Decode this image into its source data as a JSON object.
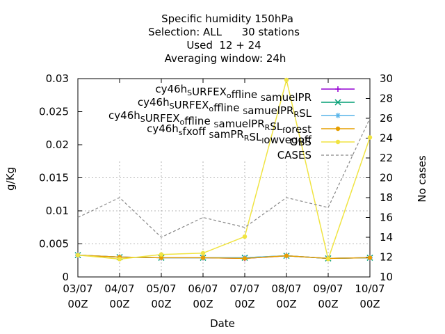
{
  "chart_data": {
    "type": "line",
    "title_lines": [
      "Specific humidity 150hPa",
      "Selection: ALL      30 stations",
      "Used  12 + 24",
      "Averaging window: 24h"
    ],
    "xlabel": "Date",
    "ylabel": "g/Kg",
    "y2label": "No cases",
    "x": [
      "03/07",
      "04/07",
      "05/07",
      "06/07",
      "07/07",
      "08/07",
      "09/07",
      "10/07"
    ],
    "x_sublabel": "00Z",
    "ylim": [
      0,
      0.03
    ],
    "y_ticks": [
      "0",
      "0.005",
      "0.01",
      "0.015",
      "0.02",
      "0.025",
      "0.03"
    ],
    "y2lim": [
      10,
      30
    ],
    "y2_ticks": [
      "10",
      "12",
      "14",
      "16",
      "18",
      "20",
      "22",
      "24",
      "26",
      "28",
      "30"
    ],
    "grid": true,
    "legend_position": "top-right",
    "series": [
      {
        "name": "cy46h_SURFEX_offline_SamuelPR",
        "legend_parts": [
          [
            "cy46h",
            "n"
          ],
          [
            "S",
            "s"
          ],
          [
            "URFEX",
            "n"
          ],
          [
            "o",
            "s"
          ],
          [
            "ffline ",
            "n"
          ],
          [
            "S",
            "s"
          ],
          [
            "amuelPR",
            "n"
          ]
        ],
        "color": "#9400d3",
        "marker": "plus",
        "axis": "y",
        "values": [
          0.0033,
          0.003,
          0.0029,
          0.0029,
          0.0028,
          0.0032,
          0.0028,
          0.0029
        ]
      },
      {
        "name": "cy46h_SURFEX_offline_SamuelPR_RSL",
        "legend_parts": [
          [
            "cy46h",
            "n"
          ],
          [
            "S",
            "s"
          ],
          [
            "URFEX",
            "n"
          ],
          [
            "o",
            "s"
          ],
          [
            "ffline ",
            "n"
          ],
          [
            "S",
            "s"
          ],
          [
            "amuelPR",
            "n"
          ],
          [
            "R",
            "s"
          ],
          [
            "SL",
            "n"
          ]
        ],
        "color": "#009e73",
        "marker": "cross",
        "axis": "y",
        "values": [
          0.0033,
          0.003,
          0.0029,
          0.0029,
          0.0029,
          0.0032,
          0.0028,
          0.0029
        ]
      },
      {
        "name": "cy46h_SURFEX_offline_SamuelPR_RSL_forest",
        "legend_parts": [
          [
            "cy46h",
            "n"
          ],
          [
            "S",
            "s"
          ],
          [
            "URFEX",
            "n"
          ],
          [
            "o",
            "s"
          ],
          [
            "ffline ",
            "n"
          ],
          [
            "S",
            "s"
          ],
          [
            "amuelPR",
            "n"
          ],
          [
            "R",
            "s"
          ],
          [
            "SL",
            "n"
          ],
          [
            "f",
            "s"
          ],
          [
            "orest",
            "n"
          ]
        ],
        "color": "#56b4e9",
        "marker": "star",
        "axis": "y",
        "values": [
          0.0033,
          0.003,
          0.0029,
          0.0029,
          0.0029,
          0.0032,
          0.0028,
          0.0029
        ]
      },
      {
        "name": "cy46h_sfxoff_SamPR_RSL_lowvegoff",
        "legend_parts": [
          [
            "cy46h",
            "n"
          ],
          [
            "s",
            "s"
          ],
          [
            "fxoff ",
            "n"
          ],
          [
            "S",
            "s"
          ],
          [
            "amPR",
            "n"
          ],
          [
            "R",
            "s"
          ],
          [
            "SL",
            "n"
          ],
          [
            "l",
            "s"
          ],
          [
            "owvegoff",
            "n"
          ]
        ],
        "color": "#e69f00",
        "marker": "dot",
        "axis": "y",
        "values": [
          0.0033,
          0.003,
          0.0029,
          0.0029,
          0.0028,
          0.0032,
          0.0028,
          0.0029
        ]
      },
      {
        "name": "OBS",
        "legend_parts": [
          [
            "OBS",
            "n"
          ]
        ],
        "color": "#f0e442",
        "marker": "dot",
        "axis": "y",
        "values": [
          0.0033,
          0.0027,
          0.0034,
          0.0036,
          0.0061,
          0.0298,
          0.0027,
          0.0211
        ]
      },
      {
        "name": "CASES",
        "legend_parts": [
          [
            "CASES",
            "n"
          ]
        ],
        "color": "#888888",
        "marker": "none",
        "dashed": true,
        "axis": "y2",
        "values": [
          16,
          18,
          14,
          16,
          15,
          18,
          17,
          26
        ]
      }
    ]
  }
}
